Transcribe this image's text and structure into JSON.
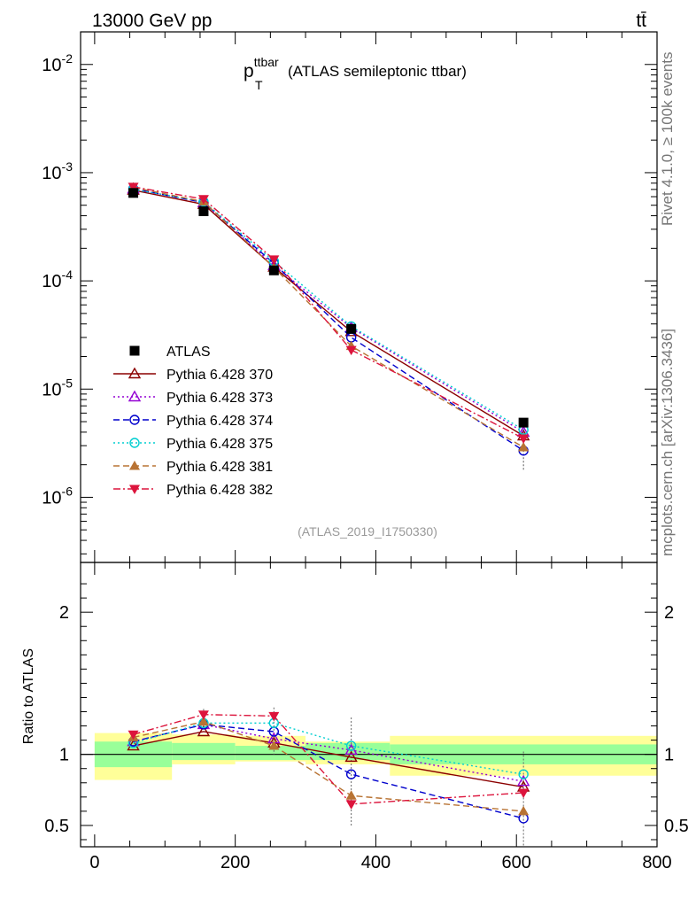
{
  "header": {
    "energy_label": "13000 GeV pp",
    "process_label": "tt̄"
  },
  "side_labels": {
    "rivet": "Rivet 4.1.0, ≥ 100k events",
    "mcplots": "mcplots.cern.ch [arXiv:1306.3436]"
  },
  "chart_data": [
    {
      "type": "line",
      "panel": "main",
      "title_main": "p",
      "title_sup": "ttbar",
      "title_sub": "T",
      "title_rest": "(ATLAS semileptonic ttbar)",
      "analysis_id": "(ATLAS_2019_I1750330)",
      "xlim": [
        -20,
        800
      ],
      "ylim": [
        2.5e-07,
        0.02
      ],
      "yscale": "log",
      "y_ticks": [
        {
          "value": 0.01,
          "base": "10",
          "exp": "-2"
        },
        {
          "value": 0.001,
          "base": "10",
          "exp": "-3"
        },
        {
          "value": 0.0001,
          "base": "10",
          "exp": "-4"
        },
        {
          "value": 1e-05,
          "base": "10",
          "exp": "-5"
        },
        {
          "value": 1e-06,
          "base": "10",
          "exp": "-6"
        }
      ],
      "legend_position": "lower-left",
      "x": [
        55,
        155,
        255,
        365,
        610
      ],
      "series": [
        {
          "name": "ATLAS",
          "color": "#000000",
          "marker": "square",
          "line": "none",
          "values": [
            0.00065,
            0.00044,
            0.000125,
            3.6e-05,
            4.9e-06
          ]
        },
        {
          "name": "Pythia 6.428 370",
          "color": "#8b0000",
          "marker": "triangle-open",
          "line": "solid",
          "values": [
            0.00069,
            0.00051,
            0.000134,
            3.4e-05,
            3.7e-06
          ]
        },
        {
          "name": "Pythia 6.428 373",
          "color": "#9400d3",
          "marker": "triangle-open",
          "line": "dotted",
          "values": [
            0.00071,
            0.00053,
            0.000139,
            3.7e-05,
            4e-06
          ]
        },
        {
          "name": "Pythia 6.428 374",
          "color": "#0000cc",
          "marker": "circle-open",
          "line": "dashed",
          "values": [
            0.00071,
            0.00053,
            0.000145,
            3e-05,
            2.7e-06
          ]
        },
        {
          "name": "Pythia 6.428 375",
          "color": "#00ced1",
          "marker": "circle-open",
          "line": "dotted",
          "values": [
            0.0007,
            0.00054,
            0.000152,
            3.8e-05,
            4.2e-06
          ]
        },
        {
          "name": "Pythia 6.428 381",
          "color": "#b87333",
          "marker": "triangle-filled",
          "line": "dashed",
          "values": [
            0.00073,
            0.00054,
            0.000133,
            2.5e-05,
            2.9e-06
          ]
        },
        {
          "name": "Pythia 6.428 382",
          "color": "#dc143c",
          "marker": "triangledown-filled",
          "line": "dashdot",
          "values": [
            0.00074,
            0.00057,
            0.000158,
            2.3e-05,
            3.5e-06
          ]
        }
      ]
    },
    {
      "type": "line",
      "panel": "ratio",
      "ylabel": "Ratio to ATLAS",
      "xlim": [
        -20,
        800
      ],
      "ylim": [
        0.35,
        2.35
      ],
      "x_ticks": [
        0,
        200,
        400,
        600,
        800
      ],
      "y_ticks": [
        0.5,
        1,
        2
      ],
      "reference_line": 1,
      "x": [
        55,
        155,
        255,
        365,
        610
      ],
      "uncertainty_bands": [
        {
          "x0": 0,
          "x1": 110,
          "inner": [
            0.91,
            1.09
          ],
          "outer": [
            0.82,
            1.15
          ]
        },
        {
          "x0": 110,
          "x1": 200,
          "inner": [
            0.96,
            1.08
          ],
          "outer": [
            0.93,
            1.14
          ]
        },
        {
          "x0": 200,
          "x1": 300,
          "inner": [
            0.96,
            1.06
          ],
          "outer": [
            0.95,
            1.13
          ]
        },
        {
          "x0": 300,
          "x1": 420,
          "inner": [
            0.96,
            1.08
          ],
          "outer": [
            0.93,
            1.09
          ]
        },
        {
          "x0": 420,
          "x1": 800,
          "inner": [
            0.93,
            1.07
          ],
          "outer": [
            0.85,
            1.13
          ]
        }
      ],
      "series": [
        {
          "name": "Pythia 6.428 370",
          "color": "#8b0000",
          "marker": "triangle-open",
          "line": "solid",
          "values": [
            1.06,
            1.16,
            1.08,
            0.98,
            0.77
          ]
        },
        {
          "name": "Pythia 6.428 373",
          "color": "#9400d3",
          "marker": "triangle-open",
          "line": "dotted",
          "values": [
            1.09,
            1.21,
            1.11,
            1.03,
            0.81
          ]
        },
        {
          "name": "Pythia 6.428 374",
          "color": "#0000cc",
          "marker": "circle-open",
          "line": "dashed",
          "values": [
            1.09,
            1.21,
            1.16,
            0.86,
            0.55
          ]
        },
        {
          "name": "Pythia 6.428 375",
          "color": "#00ced1",
          "marker": "circle-open",
          "line": "dotted",
          "values": [
            1.08,
            1.22,
            1.22,
            1.06,
            0.86
          ]
        },
        {
          "name": "Pythia 6.428 381",
          "color": "#b87333",
          "marker": "triangle-filled",
          "line": "dashed",
          "values": [
            1.12,
            1.23,
            1.06,
            0.71,
            0.6
          ]
        },
        {
          "name": "Pythia 6.428 382",
          "color": "#dc143c",
          "marker": "triangledown-filled",
          "line": "dashdot",
          "values": [
            1.14,
            1.28,
            1.27,
            0.65,
            0.73
          ]
        }
      ]
    }
  ]
}
